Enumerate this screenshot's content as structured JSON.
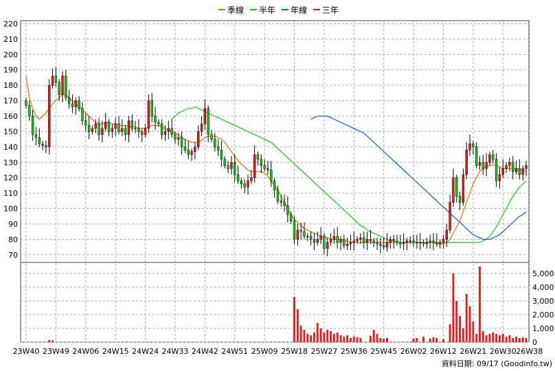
{
  "legend": [
    {
      "label": "季線",
      "color": "#e07010"
    },
    {
      "label": "半年",
      "color": "#20c020"
    },
    {
      "label": "年線",
      "color": "#1060d0"
    },
    {
      "label": "三年",
      "color": "#e02020"
    }
  ],
  "footer": "資料日期: 09/17  (Goodinfo.tw)",
  "chart_data": {
    "type": "candlestick",
    "price_axis": {
      "ylim": [
        65,
        222
      ],
      "ticks": [
        70,
        80,
        90,
        100,
        110,
        120,
        130,
        140,
        150,
        160,
        170,
        180,
        190,
        200,
        210,
        220
      ]
    },
    "volume_axis": {
      "ylim": [
        0,
        5800
      ],
      "ticks": [
        0,
        1000,
        2000,
        3000,
        4000,
        5000
      ],
      "tick_labels": [
        "0",
        "1,000",
        "2,000",
        "3,000",
        "4,000",
        "5,000"
      ]
    },
    "x_labels": [
      "23W40",
      "23W49",
      "24W06",
      "24W15",
      "24W24",
      "24W33",
      "24W42",
      "24W51",
      "25W09",
      "25W18",
      "25W27",
      "25W36",
      "25W45",
      "26W02",
      "26W12",
      "26W21",
      "26W30",
      "26W38"
    ],
    "x_label_index": [
      0,
      9,
      18,
      27,
      36,
      45,
      54,
      63,
      72,
      81,
      90,
      99,
      108,
      117,
      126,
      135,
      144,
      152
    ],
    "grid": true,
    "candle_up_color": "#e02020",
    "candle_down_color": "#20c020",
    "closes": [
      167,
      160,
      148,
      146,
      142,
      141,
      140,
      180,
      186,
      182,
      174,
      186,
      172,
      168,
      166,
      170,
      165,
      157,
      154,
      150,
      152,
      155,
      148,
      152,
      156,
      150,
      152,
      155,
      150,
      152,
      148,
      157,
      152,
      152,
      150,
      148,
      152,
      170,
      160,
      156,
      155,
      148,
      150,
      152,
      148,
      145,
      146,
      140,
      138,
      135,
      137,
      140,
      150,
      155,
      165,
      148,
      145,
      140,
      138,
      132,
      128,
      126,
      130,
      122,
      118,
      116,
      114,
      118,
      120,
      135,
      132,
      128,
      126,
      125,
      118,
      112,
      105,
      104,
      102,
      96,
      92,
      80,
      86,
      85,
      82,
      82,
      80,
      78,
      80,
      82,
      74,
      78,
      80,
      82,
      78,
      80,
      76,
      77,
      78,
      79,
      80,
      81,
      78,
      80,
      79,
      78,
      77,
      76,
      75,
      78,
      80,
      79,
      78,
      77,
      78,
      79,
      79,
      78,
      78,
      78,
      77,
      78,
      79,
      78,
      77,
      78,
      80,
      86,
      104,
      120,
      108,
      104,
      122,
      138,
      142,
      140,
      128,
      130,
      126,
      130,
      135,
      132,
      118,
      122,
      126,
      128,
      130,
      124,
      126,
      122,
      126,
      128
    ],
    "ma_quarter_start": [
      186,
      172,
      165,
      160,
      158,
      160,
      162,
      165,
      168,
      170,
      172,
      174,
      174,
      172,
      170,
      168,
      166,
      164,
      162,
      160,
      158,
      156,
      155,
      155,
      156,
      156,
      155,
      155,
      154,
      154,
      154,
      153,
      153,
      153,
      152,
      152,
      152,
      153,
      154,
      154,
      154,
      153,
      152,
      151,
      150,
      149,
      148,
      146,
      145,
      144,
      143,
      143,
      143,
      144,
      146,
      147,
      147,
      147,
      146,
      145,
      143,
      140,
      137,
      134,
      131,
      129,
      127,
      125,
      124,
      124,
      124,
      124,
      123,
      121,
      118,
      115,
      112,
      108,
      104,
      100,
      96,
      93,
      91,
      89,
      87,
      86,
      85,
      84,
      83,
      82,
      82,
      81,
      80,
      80,
      80,
      80,
      79,
      79,
      78,
      78,
      78,
      78,
      78,
      78,
      78,
      78,
      78,
      78,
      78,
      78,
      78,
      78,
      78,
      78,
      78,
      78,
      78,
      78,
      78,
      78,
      78,
      78,
      78,
      78,
      77,
      77,
      77,
      78,
      80,
      84,
      88,
      92,
      98,
      104,
      110,
      116,
      120,
      124,
      126,
      127,
      128,
      128,
      128,
      127,
      126,
      126,
      126,
      126,
      126,
      125,
      125,
      124
    ],
    "ma_half_start": [
      0,
      0,
      0,
      0,
      0,
      0,
      0,
      0,
      0,
      0,
      0,
      0,
      0,
      0,
      0,
      0,
      0,
      0,
      0,
      0,
      0,
      0,
      0,
      0,
      0,
      0,
      0,
      0,
      0,
      0,
      0,
      0,
      0,
      0,
      0,
      0,
      0,
      0,
      0,
      0,
      0,
      0,
      0,
      0,
      0,
      0,
      0,
      0,
      0,
      0,
      0,
      0,
      0,
      0,
      0,
      0,
      0,
      0,
      0,
      0,
      0,
      0,
      0,
      0,
      0,
      0,
      0,
      0,
      0,
      0,
      0,
      0,
      0,
      0,
      0,
      0,
      0,
      0,
      0,
      0,
      0,
      0,
      0,
      0,
      0,
      0,
      0,
      0,
      0,
      0,
      0,
      0,
      0,
      0,
      0,
      0,
      0,
      0,
      0,
      0,
      0,
      0,
      0,
      0,
      0,
      0,
      0,
      0,
      0,
      0,
      0,
      0,
      0,
      0,
      0,
      0,
      0,
      0,
      0,
      0,
      0,
      0,
      0,
      0,
      0,
      0,
      0,
      0,
      0,
      0,
      0,
      0,
      0,
      0,
      0,
      0,
      0,
      0,
      0,
      0,
      0,
      0,
      0,
      0,
      0,
      0,
      0,
      0,
      0,
      0,
      0,
      0
    ],
    "ma_half": [
      158,
      160,
      162,
      163,
      164,
      165,
      165,
      166,
      165,
      164,
      163,
      162,
      161,
      160,
      159,
      158,
      157,
      156,
      155,
      154,
      153,
      152,
      151,
      150,
      149,
      148,
      147,
      146,
      145,
      144,
      143,
      141,
      139,
      137,
      135,
      133,
      131,
      129,
      127,
      125,
      123,
      121,
      119,
      117,
      115,
      113,
      111,
      109,
      107,
      105,
      103,
      101,
      99,
      97,
      95,
      93,
      91,
      89,
      88,
      86,
      85,
      84,
      83,
      82,
      81,
      80,
      79,
      79,
      78,
      78,
      78,
      78,
      78,
      78,
      78,
      78,
      78,
      78,
      78,
      78,
      78,
      78,
      78,
      78,
      78,
      78,
      78,
      78,
      78,
      78,
      78,
      78,
      78,
      78,
      79,
      80,
      82,
      85,
      88,
      92,
      96,
      100,
      104,
      108,
      111,
      114,
      116,
      118
    ],
    "ma_year": [
      158,
      159,
      160,
      160,
      160,
      160,
      159,
      158,
      157,
      156,
      155,
      154,
      153,
      152,
      151,
      150,
      149,
      147,
      145,
      143,
      141,
      139,
      137,
      135,
      133,
      131,
      129,
      127,
      125,
      123,
      121,
      119,
      117,
      115,
      113,
      111,
      109,
      107,
      105,
      103,
      101,
      99,
      97,
      95,
      93,
      91,
      89,
      87,
      85,
      83,
      82,
      81,
      80,
      80,
      80,
      81,
      82,
      83,
      85,
      87,
      89,
      91,
      93,
      95,
      96,
      98
    ],
    "volume_spikes": [
      {
        "i": 7,
        "v": 150
      },
      {
        "i": 8,
        "v": 120
      },
      {
        "i": 81,
        "v": 3300
      },
      {
        "i": 82,
        "v": 2400
      },
      {
        "i": 83,
        "v": 1200
      },
      {
        "i": 84,
        "v": 900
      },
      {
        "i": 85,
        "v": 600
      },
      {
        "i": 86,
        "v": 500
      },
      {
        "i": 87,
        "v": 700
      },
      {
        "i": 88,
        "v": 1400
      },
      {
        "i": 89,
        "v": 1000
      },
      {
        "i": 90,
        "v": 700
      },
      {
        "i": 91,
        "v": 900
      },
      {
        "i": 92,
        "v": 800
      },
      {
        "i": 93,
        "v": 600
      },
      {
        "i": 94,
        "v": 700
      },
      {
        "i": 95,
        "v": 500
      },
      {
        "i": 96,
        "v": 400
      },
      {
        "i": 97,
        "v": 500
      },
      {
        "i": 98,
        "v": 300
      },
      {
        "i": 99,
        "v": 400
      },
      {
        "i": 100,
        "v": 350
      },
      {
        "i": 101,
        "v": 300
      },
      {
        "i": 104,
        "v": 450
      },
      {
        "i": 105,
        "v": 900
      },
      {
        "i": 106,
        "v": 600
      },
      {
        "i": 107,
        "v": 300
      },
      {
        "i": 108,
        "v": 250
      },
      {
        "i": 109,
        "v": 300
      },
      {
        "i": 117,
        "v": 250
      },
      {
        "i": 118,
        "v": 300
      },
      {
        "i": 120,
        "v": 400
      },
      {
        "i": 122,
        "v": 250
      },
      {
        "i": 123,
        "v": 350
      },
      {
        "i": 124,
        "v": 300
      },
      {
        "i": 126,
        "v": 200
      },
      {
        "i": 128,
        "v": 1300
      },
      {
        "i": 129,
        "v": 5000
      },
      {
        "i": 130,
        "v": 3000
      },
      {
        "i": 131,
        "v": 1900
      },
      {
        "i": 132,
        "v": 1000
      },
      {
        "i": 133,
        "v": 3500
      },
      {
        "i": 134,
        "v": 2600
      },
      {
        "i": 135,
        "v": 1500
      },
      {
        "i": 136,
        "v": 600
      },
      {
        "i": 137,
        "v": 5500
      },
      {
        "i": 138,
        "v": 800
      },
      {
        "i": 139,
        "v": 500
      },
      {
        "i": 140,
        "v": 600
      },
      {
        "i": 141,
        "v": 700
      },
      {
        "i": 142,
        "v": 600
      },
      {
        "i": 143,
        "v": 500
      },
      {
        "i": 144,
        "v": 600
      },
      {
        "i": 145,
        "v": 400
      },
      {
        "i": 146,
        "v": 500
      },
      {
        "i": 147,
        "v": 300
      },
      {
        "i": 148,
        "v": 400
      },
      {
        "i": 149,
        "v": 300
      },
      {
        "i": 150,
        "v": 350
      },
      {
        "i": 151,
        "v": 300
      }
    ]
  }
}
